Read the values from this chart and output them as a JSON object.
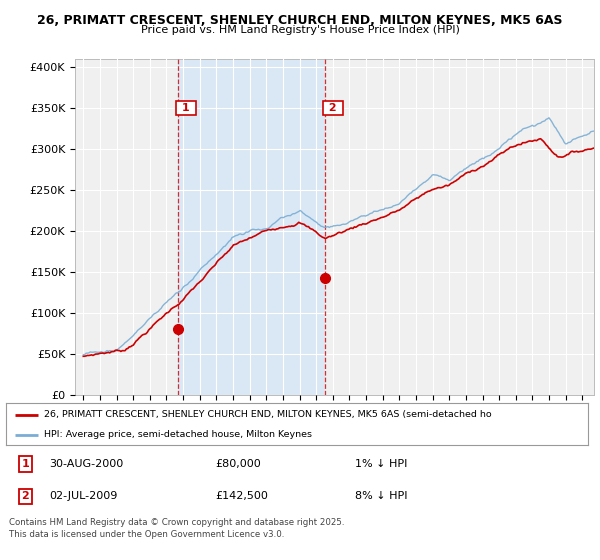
{
  "title_line1": "26, PRIMATT CRESCENT, SHENLEY CHURCH END, MILTON KEYNES, MK5 6AS",
  "title_line2": "Price paid vs. HM Land Registry's House Price Index (HPI)",
  "ylabel_ticks": [
    "£0",
    "£50K",
    "£100K",
    "£150K",
    "£200K",
    "£250K",
    "£300K",
    "£350K",
    "£400K"
  ],
  "ytick_values": [
    0,
    50000,
    100000,
    150000,
    200000,
    250000,
    300000,
    350000,
    400000
  ],
  "ylim": [
    0,
    410000
  ],
  "xlim_start": 1994.5,
  "xlim_end": 2025.7,
  "red_color": "#cc0000",
  "blue_color": "#7aadd4",
  "shade_color": "#dae8f5",
  "marker1_x": 2000.67,
  "marker1_y": 80000,
  "marker1_label": "1",
  "marker2_x": 2009.5,
  "marker2_y": 142500,
  "marker2_label": "2",
  "vline1_x": 2000.67,
  "vline2_x": 2009.5,
  "legend_red_label": "26, PRIMATT CRESCENT, SHENLEY CHURCH END, MILTON KEYNES, MK5 6AS (semi-detached ho",
  "legend_blue_label": "HPI: Average price, semi-detached house, Milton Keynes",
  "annotation1_date": "30-AUG-2000",
  "annotation1_price": "£80,000",
  "annotation1_hpi": "1% ↓ HPI",
  "annotation2_date": "02-JUL-2009",
  "annotation2_price": "£142,500",
  "annotation2_hpi": "8% ↓ HPI",
  "footer": "Contains HM Land Registry data © Crown copyright and database right 2025.\nThis data is licensed under the Open Government Licence v3.0.",
  "background_color": "#ffffff",
  "plot_bg_color": "#f0f0f0"
}
